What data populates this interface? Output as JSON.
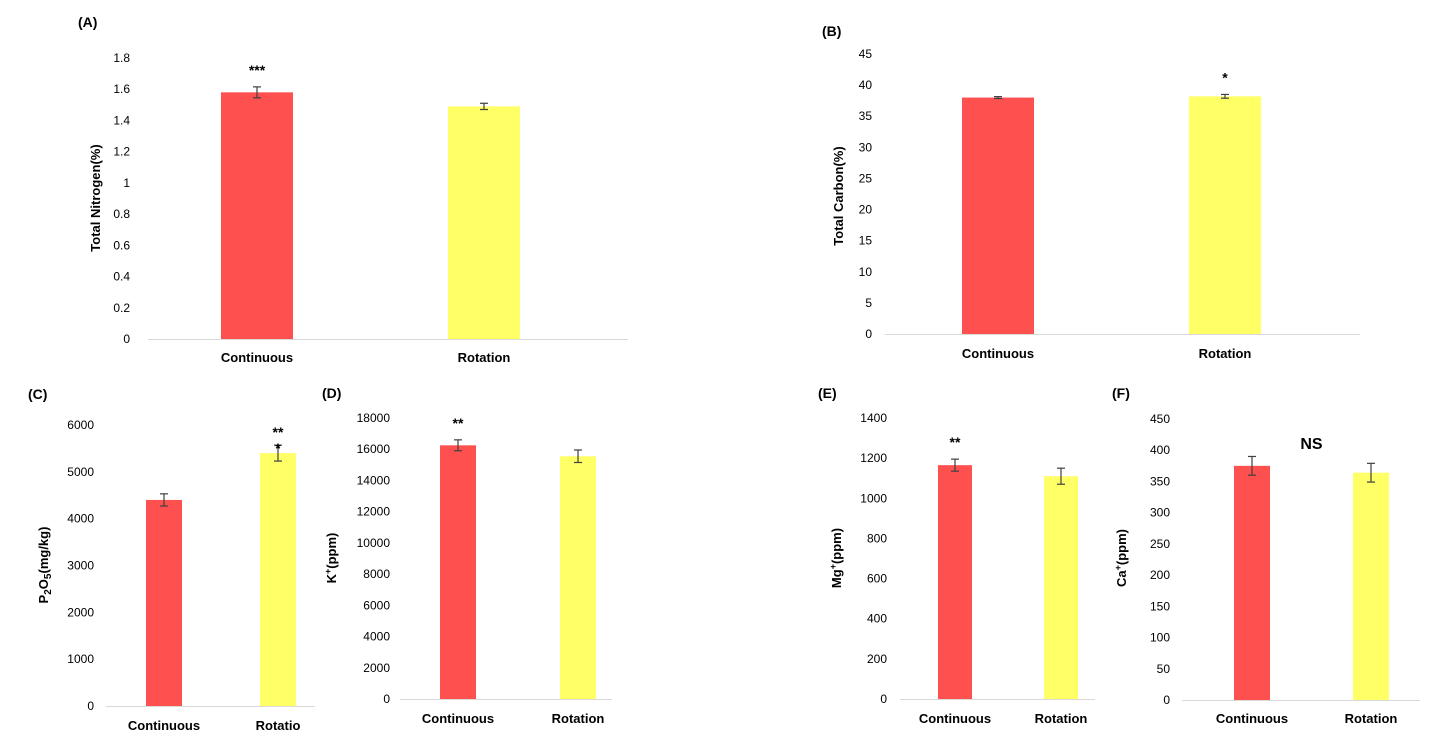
{
  "colors": {
    "continuous": "#ff5050",
    "rotation": "#ffff66",
    "axis": "#d9d9d9",
    "error": "#404040"
  },
  "chart_data": [
    {
      "panel": "(A)",
      "type": "bar",
      "categories": [
        "Continuous",
        "Rotation"
      ],
      "values": [
        1.58,
        1.49
      ],
      "errors": [
        0.035,
        0.02
      ],
      "ylabel": "Total Nitrogen(%)",
      "ylim": [
        0,
        1.8
      ],
      "yticks": [
        0,
        0.2,
        0.4,
        0.6,
        0.8,
        1,
        1.2,
        1.4,
        1.6,
        1.8
      ],
      "significance": [
        {
          "category": "Continuous",
          "label": "***"
        }
      ]
    },
    {
      "panel": "(B)",
      "type": "bar",
      "categories": [
        "Continuous",
        "Rotation"
      ],
      "values": [
        38.0,
        38.2
      ],
      "errors": [
        0.15,
        0.3
      ],
      "ylabel": "Total Carbon(%)",
      "ylim": [
        0,
        45
      ],
      "yticks": [
        0,
        5,
        10,
        15,
        20,
        25,
        30,
        35,
        40,
        45
      ],
      "significance": [
        {
          "category": "Rotation",
          "label": "*"
        }
      ]
    },
    {
      "panel": "(C)",
      "type": "bar",
      "categories": [
        "Continuous",
        "Rotatio"
      ],
      "values": [
        4400,
        5400
      ],
      "errors": [
        130,
        170
      ],
      "ylabel": "P2O5(mg/kg)",
      "ylabel_parts": [
        "P",
        "2",
        "O",
        "5",
        "(mg/kg)"
      ],
      "ylim": [
        0,
        6000
      ],
      "yticks": [
        0,
        1000,
        2000,
        3000,
        4000,
        5000,
        6000
      ],
      "significance": [
        {
          "category": "Rotatio",
          "label": "**",
          "label2": "*"
        }
      ]
    },
    {
      "panel": "(D)",
      "type": "bar",
      "categories": [
        "Continuous",
        "Rotation"
      ],
      "values": [
        16250,
        15550
      ],
      "errors": [
        350,
        400
      ],
      "ylabel": "K+(ppm)",
      "ylabel_parts": [
        "K",
        "+",
        "(ppm)"
      ],
      "ylim": [
        0,
        18000
      ],
      "yticks": [
        0,
        2000,
        4000,
        6000,
        8000,
        10000,
        12000,
        14000,
        16000,
        18000
      ],
      "significance": [
        {
          "category": "Continuous",
          "label": "**"
        }
      ]
    },
    {
      "panel": "(E)",
      "type": "bar",
      "categories": [
        "Continuous",
        "Rotation"
      ],
      "values": [
        1165,
        1110
      ],
      "errors": [
        30,
        40
      ],
      "ylabel": "Mg+(ppm)",
      "ylabel_parts": [
        "Mg",
        "+",
        "(ppm)"
      ],
      "ylim": [
        0,
        1400
      ],
      "yticks": [
        0,
        200,
        400,
        600,
        800,
        1000,
        1200,
        1400
      ],
      "significance": [
        {
          "category": "Continuous",
          "label": "**"
        }
      ]
    },
    {
      "panel": "(F)",
      "type": "bar",
      "categories": [
        "Continuous",
        "Rotation"
      ],
      "values": [
        375,
        364
      ],
      "errors": [
        15,
        15
      ],
      "ylabel": "Ca+(ppm)",
      "ylabel_parts": [
        "Ca",
        "+",
        "(ppm)"
      ],
      "ylim": [
        0,
        450
      ],
      "yticks": [
        0,
        50,
        100,
        150,
        200,
        250,
        300,
        350,
        400,
        450
      ],
      "significance": [
        {
          "label": "NS",
          "position": "center"
        }
      ]
    }
  ]
}
